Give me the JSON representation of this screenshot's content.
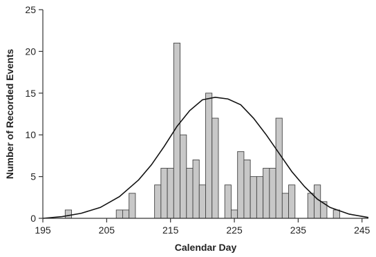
{
  "chart_data": {
    "type": "bar",
    "xlabel": "Calendar Day",
    "ylabel": "Number of Recorded Events",
    "xlim": [
      195,
      246
    ],
    "ylim": [
      0,
      25
    ],
    "x_ticks": [
      195,
      205,
      215,
      225,
      235,
      245
    ],
    "y_ticks": [
      0,
      5,
      10,
      15,
      20,
      25
    ],
    "grid": false,
    "legend": "none",
    "bar_color": "#c8c8c8",
    "bar_edge_color": "#444444",
    "curve_color": "#111111",
    "series": [
      {
        "type": "bar",
        "x": [
          199,
          207,
          208,
          209,
          213,
          214,
          215,
          216,
          217,
          218,
          219,
          220,
          221,
          222,
          224,
          225,
          226,
          227,
          228,
          229,
          230,
          231,
          232,
          233,
          234,
          235,
          237,
          238,
          239,
          241
        ],
        "values": [
          1,
          1,
          1,
          3,
          4,
          6,
          6,
          21,
          10,
          6,
          7,
          4,
          15,
          12,
          4,
          1,
          8,
          7,
          5,
          5,
          6,
          6,
          12,
          3,
          4,
          0,
          3,
          4,
          2,
          1
        ]
      },
      {
        "type": "line",
        "x": [
          195,
          198,
          201,
          204,
          207,
          210,
          212,
          214,
          216,
          218,
          220,
          222,
          224,
          226,
          228,
          230,
          232,
          234,
          236,
          238,
          240,
          243,
          246
        ],
        "values": [
          0.0,
          0.2,
          0.6,
          1.3,
          2.6,
          4.6,
          6.4,
          8.6,
          11.0,
          12.9,
          14.2,
          14.5,
          14.3,
          13.6,
          12.0,
          10.0,
          7.8,
          5.6,
          3.8,
          2.3,
          1.3,
          0.5,
          0.1
        ]
      }
    ]
  }
}
